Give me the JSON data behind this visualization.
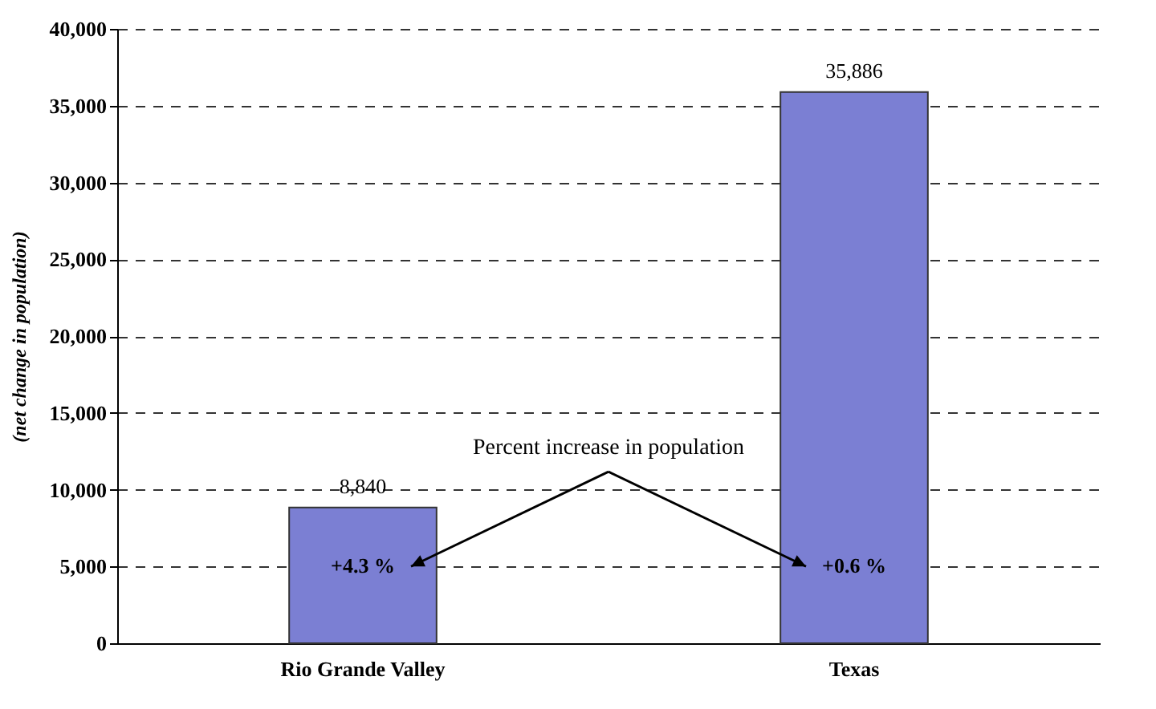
{
  "chart_data": {
    "type": "bar",
    "ylabel": "(net change in population)",
    "categories": [
      "Rio Grande Valley",
      "Texas"
    ],
    "values": [
      8840,
      35886
    ],
    "value_labels": [
      "8,840",
      "35,886"
    ],
    "color": "#7b7fd3",
    "ylim": [
      0,
      40000
    ],
    "yticks": [
      {
        "value": 0,
        "label": "0"
      },
      {
        "value": 5000,
        "label": "5,000"
      },
      {
        "value": 10000,
        "label": "10,000"
      },
      {
        "value": 15000,
        "label": "15,000"
      },
      {
        "value": 20000,
        "label": "20,000"
      },
      {
        "value": 25000,
        "label": "25,000"
      },
      {
        "value": 30000,
        "label": "30,000"
      },
      {
        "value": 35000,
        "label": "35,000"
      },
      {
        "value": 40000,
        "label": "40,000"
      }
    ],
    "grid": "y",
    "annotations": [
      "+4.3 %",
      "+0.6 %",
      "Percent increase in population"
    ]
  }
}
